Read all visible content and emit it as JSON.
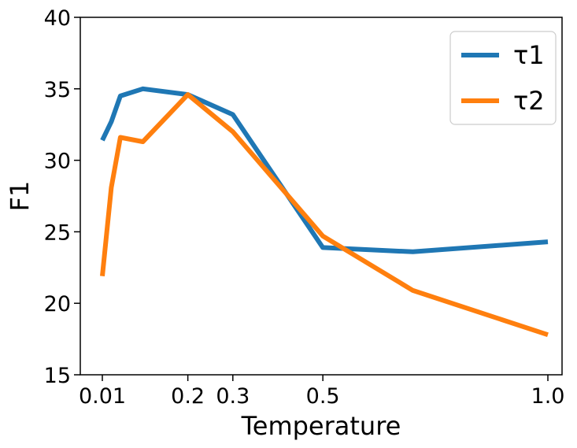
{
  "chart_data": {
    "type": "line",
    "title": "",
    "xlabel": "Temperature",
    "ylabel": "F1",
    "xlim": [
      0.01,
      1.0
    ],
    "ylim": [
      15,
      40
    ],
    "xticks": [
      0.01,
      0.2,
      0.3,
      0.5,
      1.0
    ],
    "xtick_labels": [
      "0.01",
      "0.2",
      "0.3",
      "0.5",
      "1.0"
    ],
    "yticks": [
      15,
      20,
      25,
      30,
      35,
      40
    ],
    "ytick_labels": [
      "15",
      "20",
      "25",
      "30",
      "35",
      "40"
    ],
    "grid": false,
    "legend_position": "top-right",
    "series": [
      {
        "name": "τ1",
        "color": "#1f77b4",
        "x": [
          0.01,
          0.03,
          0.05,
          0.1,
          0.2,
          0.3,
          0.5,
          0.7,
          1.0
        ],
        "y": [
          31.4,
          32.7,
          34.5,
          35.0,
          34.6,
          33.2,
          23.9,
          23.6,
          24.3
        ]
      },
      {
        "name": "τ2",
        "color": "#ff7f0e",
        "x": [
          0.01,
          0.03,
          0.05,
          0.1,
          0.2,
          0.3,
          0.5,
          0.7,
          1.0
        ],
        "y": [
          21.9,
          28.1,
          31.6,
          31.3,
          34.6,
          32.0,
          24.7,
          20.9,
          17.8
        ]
      }
    ]
  }
}
